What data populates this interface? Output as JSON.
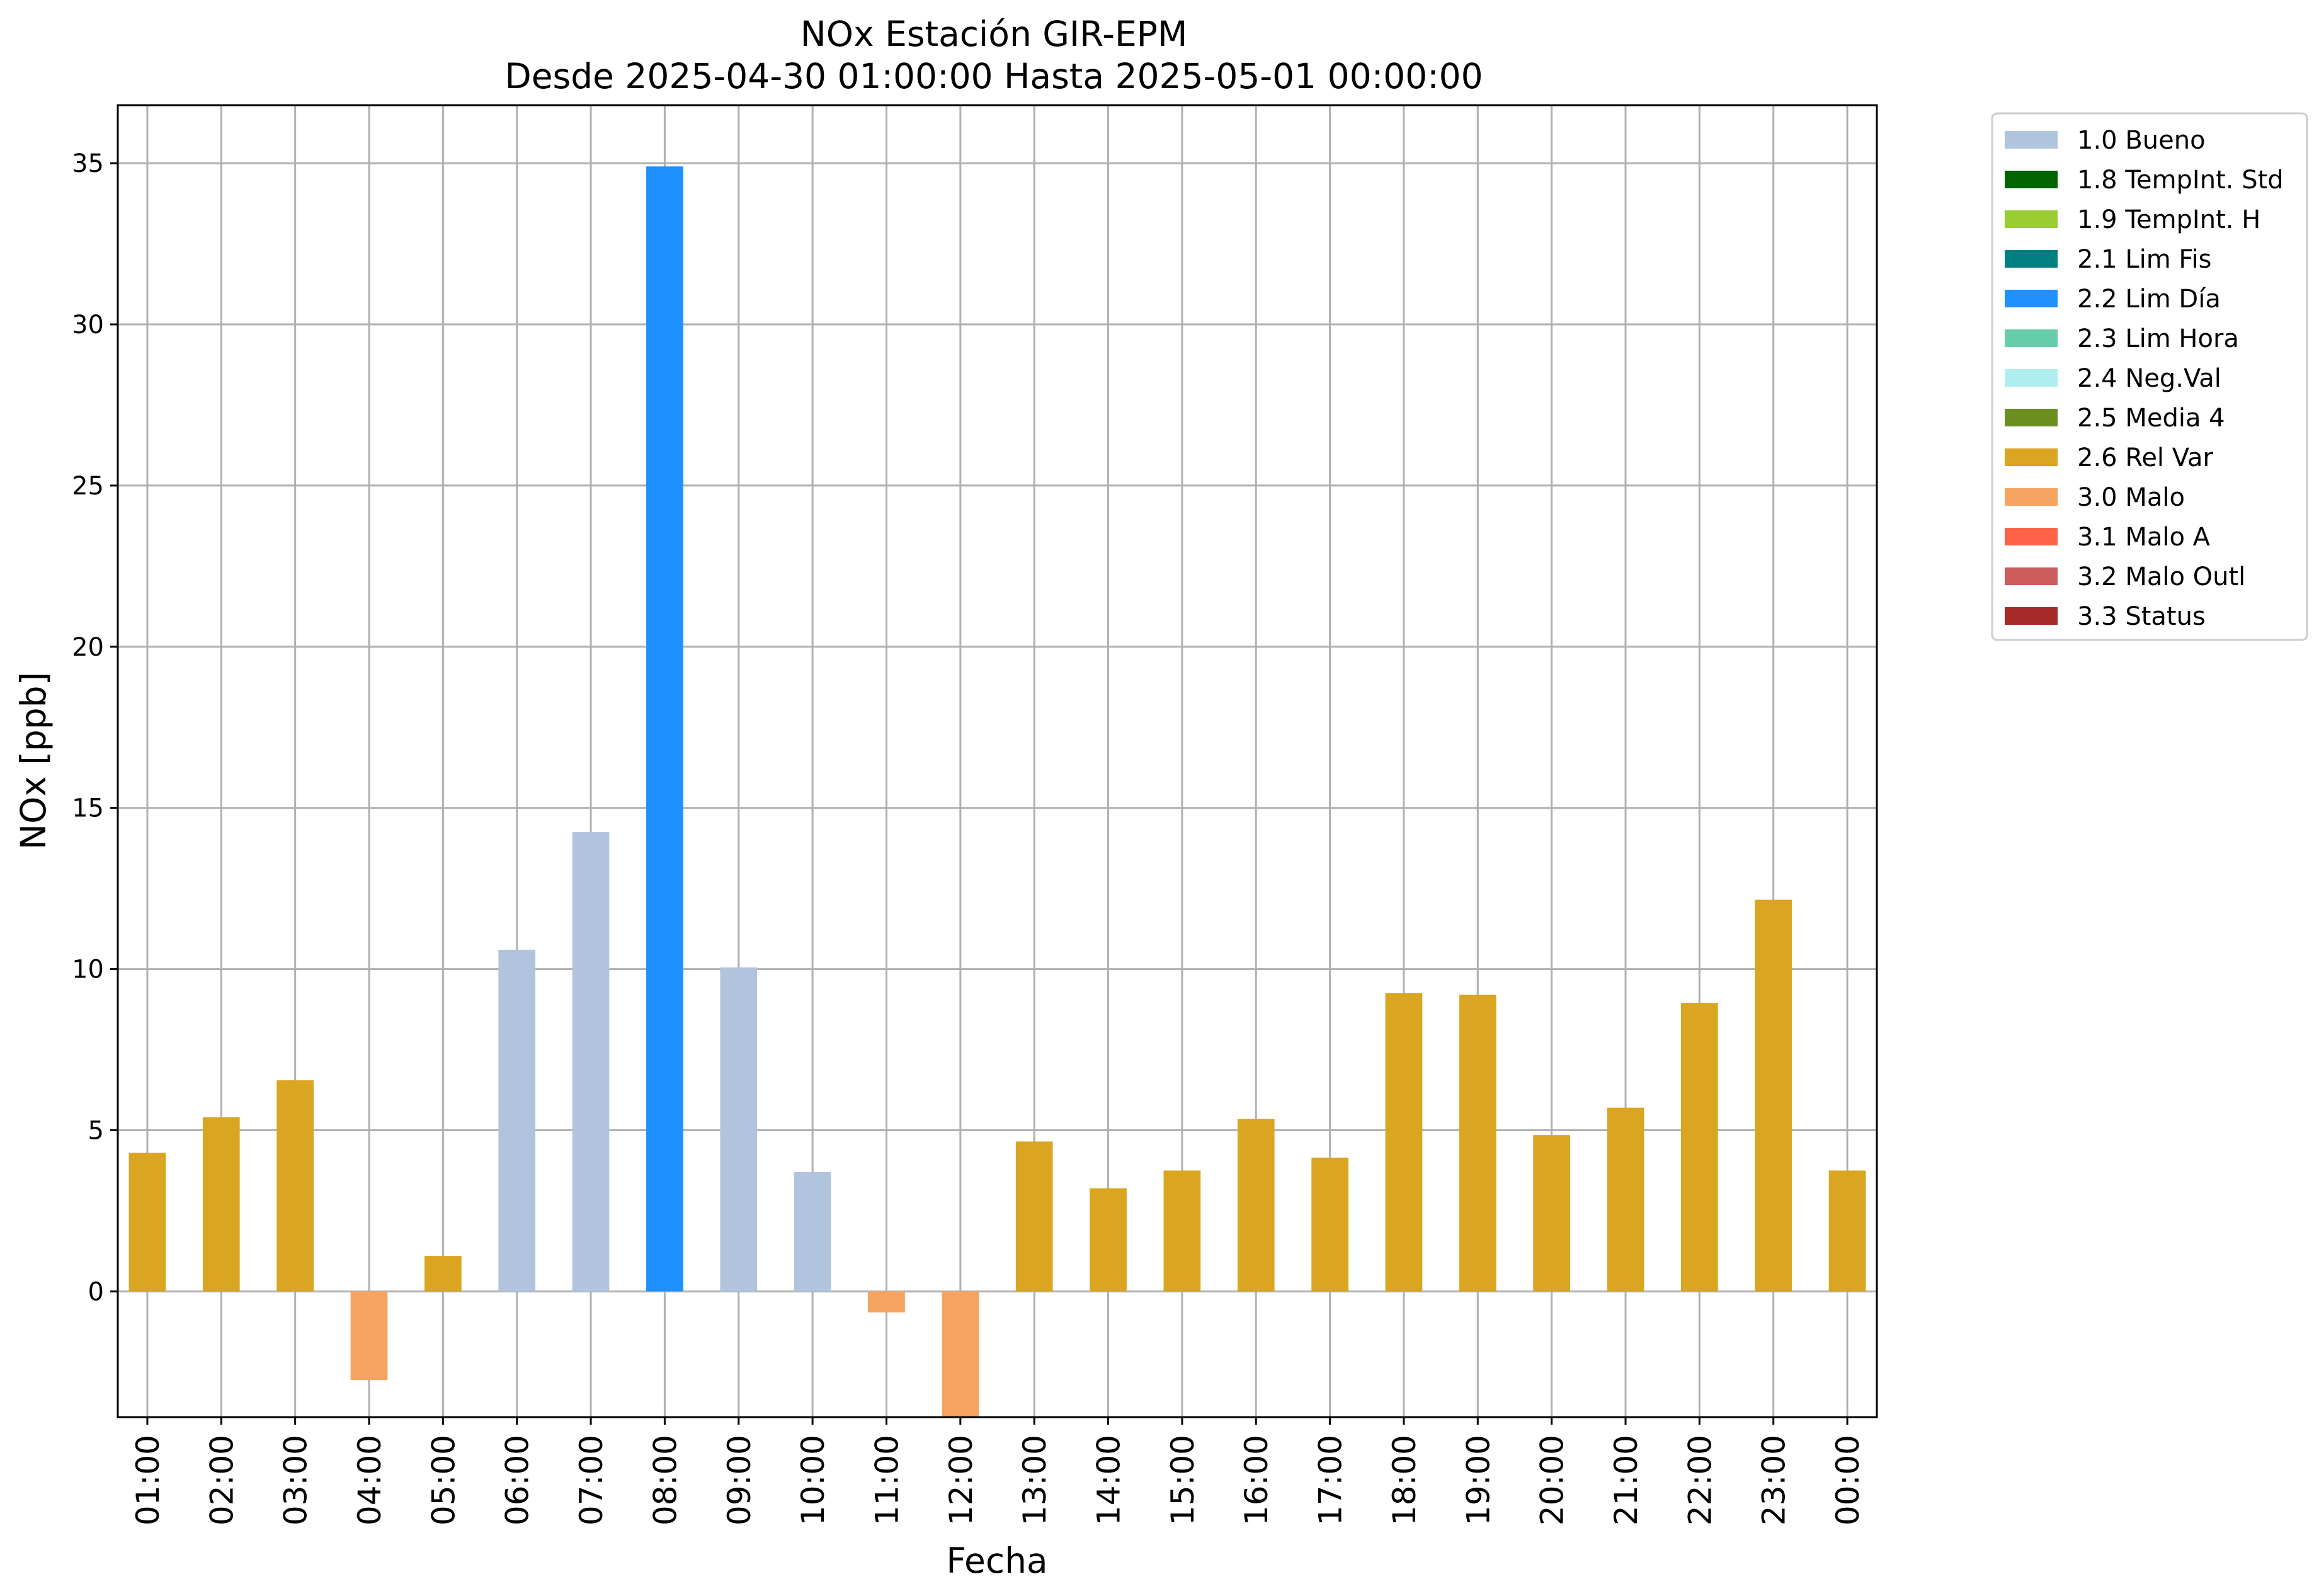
{
  "chart_data": {
    "type": "bar",
    "title": "NOx Estación GIR-EPM",
    "subtitle": "Desde 2025-04-30 01:00:00 Hasta 2025-05-01 00:00:00",
    "xlabel": "Fecha",
    "ylabel": "NOx [ppb]",
    "ylim": [
      -3.9,
      36.8
    ],
    "yticks": [
      0,
      5,
      10,
      15,
      20,
      25,
      30,
      35
    ],
    "grid": true,
    "legend_position": "outside-top-right",
    "categories": [
      "01:00",
      "02:00",
      "03:00",
      "04:00",
      "05:00",
      "06:00",
      "07:00",
      "08:00",
      "09:00",
      "10:00",
      "11:00",
      "12:00",
      "13:00",
      "14:00",
      "15:00",
      "16:00",
      "17:00",
      "18:00",
      "19:00",
      "20:00",
      "21:00",
      "22:00",
      "23:00",
      "00:00"
    ],
    "values": [
      4.3,
      5.4,
      6.55,
      -2.75,
      1.1,
      10.6,
      14.25,
      34.9,
      10.05,
      3.7,
      -0.65,
      -4.0,
      4.65,
      3.2,
      3.75,
      5.35,
      4.15,
      9.25,
      9.2,
      4.85,
      5.7,
      8.95,
      12.15,
      3.75
    ],
    "quality": [
      "2.6",
      "2.6",
      "2.6",
      "3.0",
      "2.6",
      "1.0",
      "1.0",
      "2.2",
      "1.0",
      "1.0",
      "3.0",
      "3.0",
      "2.6",
      "2.6",
      "2.6",
      "2.6",
      "2.6",
      "2.6",
      "2.6",
      "2.6",
      "2.6",
      "2.6",
      "2.6",
      "2.6"
    ],
    "legend": [
      {
        "code": "1.0",
        "label": "1.0 Bueno",
        "color": "#b0c4de"
      },
      {
        "code": "1.8",
        "label": "1.8 TempInt. Std",
        "color": "#006400"
      },
      {
        "code": "1.9",
        "label": "1.9 TempInt. H",
        "color": "#9acd32"
      },
      {
        "code": "2.1",
        "label": "2.1 Lim Fis",
        "color": "#008080"
      },
      {
        "code": "2.2",
        "label": "2.2 Lim Día",
        "color": "#1e90ff"
      },
      {
        "code": "2.3",
        "label": "2.3 Lim Hora",
        "color": "#66cdaa"
      },
      {
        "code": "2.4",
        "label": "2.4 Neg.Val",
        "color": "#afeeee"
      },
      {
        "code": "2.5",
        "label": "2.5 Media 4",
        "color": "#6b8e23"
      },
      {
        "code": "2.6",
        "label": "2.6 Rel Var",
        "color": "#daa520"
      },
      {
        "code": "3.0",
        "label": "3.0 Malo",
        "color": "#f4a460"
      },
      {
        "code": "3.1",
        "label": "3.1 Malo A",
        "color": "#ff6347"
      },
      {
        "code": "3.2",
        "label": "3.2 Malo Outl",
        "color": "#cd5c5c"
      },
      {
        "code": "3.3",
        "label": "3.3 Status",
        "color": "#a52a2a"
      }
    ]
  }
}
